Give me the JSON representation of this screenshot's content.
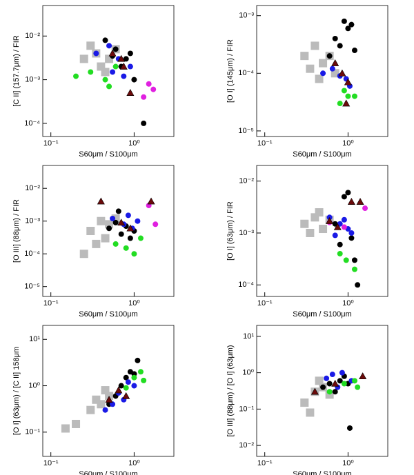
{
  "chart_data": [
    {
      "type": "scatter",
      "xlabel": "S60μm / S100μm",
      "ylabel": "[C II] (157.7μm) / FIR",
      "xlim": [
        0.08,
        3
      ],
      "xticks": [
        {
          "value": 0.1,
          "label": "10⁻¹"
        },
        {
          "value": 1,
          "label": "10⁰"
        }
      ],
      "ylim": [
        5e-05,
        0.05
      ],
      "yticks": [
        {
          "value": 0.01,
          "label": "10⁻²"
        },
        {
          "value": 0.001,
          "label": "10⁻³"
        },
        {
          "value": 0.0001,
          "label": "10⁻⁴"
        }
      ],
      "series": [
        {
          "color": "#bbbbbb",
          "marker": "square",
          "x": [
            0.25,
            0.35,
            0.4,
            0.5,
            0.6,
            0.3,
            0.45
          ],
          "y": [
            0.003,
            0.004,
            0.002,
            0.003,
            0.005,
            0.006,
            0.0015
          ]
        },
        {
          "color": "#000000",
          "marker": "circle",
          "x": [
            0.45,
            0.6,
            0.8,
            1.0,
            0.7,
            1.3,
            0.9,
            0.55
          ],
          "y": [
            0.008,
            0.005,
            0.003,
            0.001,
            0.002,
            0.0001,
            0.004,
            0.0035
          ]
        },
        {
          "color": "#1a1ae6",
          "marker": "circle",
          "x": [
            0.35,
            0.5,
            0.65,
            0.9,
            0.55,
            0.75
          ],
          "y": [
            0.004,
            0.006,
            0.003,
            0.002,
            0.0015,
            0.0012
          ]
        },
        {
          "color": "#22dd22",
          "marker": "circle",
          "x": [
            0.3,
            0.45,
            0.6,
            0.5,
            0.2
          ],
          "y": [
            0.0015,
            0.001,
            0.002,
            0.0007,
            0.0012
          ]
        },
        {
          "color": "#e020e0",
          "marker": "circle",
          "x": [
            1.5,
            1.7,
            1.3
          ],
          "y": [
            0.0008,
            0.0006,
            0.0004
          ]
        },
        {
          "color": "#6b0a0a",
          "marker": "triangle",
          "x": [
            0.55,
            0.75,
            0.9,
            0.7
          ],
          "y": [
            0.004,
            0.002,
            0.0005,
            0.003
          ]
        }
      ]
    },
    {
      "type": "scatter",
      "xlabel": "S60μm / S100μm",
      "ylabel": "[O I] (145μm) / FIR",
      "xlim": [
        0.08,
        3
      ],
      "xticks": [
        {
          "value": 0.1,
          "label": "10⁻¹"
        },
        {
          "value": 1,
          "label": "10⁰"
        }
      ],
      "ylim": [
        8e-06,
        0.0015
      ],
      "yticks": [
        {
          "value": 0.001,
          "label": "10⁻³"
        },
        {
          "value": 0.0001,
          "label": "10⁻⁴"
        },
        {
          "value": 1e-05,
          "label": "10⁻⁵"
        }
      ],
      "series": [
        {
          "color": "#bbbbbb",
          "marker": "square",
          "x": [
            0.3,
            0.4,
            0.5,
            0.6,
            0.7,
            0.45,
            0.35
          ],
          "y": [
            0.0002,
            0.0003,
            0.00015,
            0.0002,
            0.0001,
            8e-05,
            0.00012
          ]
        },
        {
          "color": "#000000",
          "marker": "circle",
          "x": [
            0.9,
            1.0,
            1.1,
            0.7,
            0.8,
            0.6,
            1.2
          ],
          "y": [
            0.0008,
            0.0006,
            0.0007,
            0.0004,
            0.0003,
            0.0002,
            0.00025
          ]
        },
        {
          "color": "#1a1ae6",
          "marker": "circle",
          "x": [
            0.5,
            0.65,
            0.8,
            0.95,
            1.05
          ],
          "y": [
            0.0001,
            0.00012,
            9e-05,
            8e-05,
            6e-05
          ]
        },
        {
          "color": "#22dd22",
          "marker": "circle",
          "x": [
            0.8,
            1.0,
            1.2,
            0.9
          ],
          "y": [
            3e-05,
            4e-05,
            4e-05,
            5e-05
          ]
        },
        {
          "color": "#6b0a0a",
          "marker": "triangle",
          "x": [
            0.7,
            0.85,
            0.95,
            1.0
          ],
          "y": [
            0.00015,
            0.0001,
            3e-05,
            7e-05
          ]
        }
      ]
    },
    {
      "type": "scatter",
      "xlabel": "S60μm / S100μm",
      "ylabel": "[O III] (88μm) / FIR",
      "xlim": [
        0.08,
        3
      ],
      "xticks": [
        {
          "value": 0.1,
          "label": "10⁻¹"
        },
        {
          "value": 1,
          "label": "10⁰"
        }
      ],
      "ylim": [
        5e-06,
        0.05
      ],
      "yticks": [
        {
          "value": 0.01,
          "label": "10⁻²"
        },
        {
          "value": 0.001,
          "label": "10⁻³"
        },
        {
          "value": 0.0001,
          "label": "10⁻⁴"
        },
        {
          "value": 1e-05,
          "label": "10⁻⁵"
        }
      ],
      "series": [
        {
          "color": "#bbbbbb",
          "marker": "square",
          "x": [
            0.3,
            0.4,
            0.5,
            0.6,
            0.45,
            0.35,
            0.25
          ],
          "y": [
            0.0005,
            0.001,
            0.0008,
            0.0012,
            0.0003,
            0.0002,
            0.0001
          ]
        },
        {
          "color": "#000000",
          "marker": "circle",
          "x": [
            0.5,
            0.6,
            0.7,
            0.8,
            0.9,
            1.0,
            0.65
          ],
          "y": [
            0.0006,
            0.0009,
            0.0004,
            0.0007,
            0.0003,
            0.0005,
            0.002
          ]
        },
        {
          "color": "#1a1ae6",
          "marker": "circle",
          "x": [
            0.55,
            0.75,
            0.85,
            1.1,
            0.95
          ],
          "y": [
            0.0012,
            0.0008,
            0.0015,
            0.001,
            0.0006
          ]
        },
        {
          "color": "#22dd22",
          "marker": "circle",
          "x": [
            0.6,
            0.8,
            1.0,
            1.2
          ],
          "y": [
            0.0002,
            0.00015,
            0.0001,
            0.0003
          ]
        },
        {
          "color": "#e020e0",
          "marker": "circle",
          "x": [
            1.5,
            1.8
          ],
          "y": [
            0.003,
            0.0008
          ]
        },
        {
          "color": "#6b0a0a",
          "marker": "triangle",
          "x": [
            0.4,
            0.7,
            0.9,
            1.6
          ],
          "y": [
            0.004,
            0.0009,
            0.0006,
            0.004
          ]
        }
      ]
    },
    {
      "type": "scatter",
      "xlabel": "S60μm / S100μm",
      "ylabel": "[O I] (63μm) / FIR",
      "xlim": [
        0.08,
        3
      ],
      "xticks": [
        {
          "value": 0.1,
          "label": "10⁻¹"
        },
        {
          "value": 1,
          "label": "10⁰"
        }
      ],
      "ylim": [
        6e-05,
        0.02
      ],
      "yticks": [
        {
          "value": 0.01,
          "label": "10⁻²"
        },
        {
          "value": 0.001,
          "label": "10⁻³"
        },
        {
          "value": 0.0001,
          "label": "10⁻⁴"
        }
      ],
      "series": [
        {
          "color": "#bbbbbb",
          "marker": "square",
          "x": [
            0.3,
            0.4,
            0.5,
            0.6,
            0.35,
            0.45
          ],
          "y": [
            0.0015,
            0.002,
            0.0012,
            0.0018,
            0.001,
            0.0025
          ]
        },
        {
          "color": "#000000",
          "marker": "circle",
          "x": [
            0.9,
            1.0,
            1.1,
            0.8,
            0.7,
            1.2,
            1.3
          ],
          "y": [
            0.005,
            0.006,
            0.0008,
            0.0006,
            0.0015,
            0.0003,
            0.0001
          ]
        },
        {
          "color": "#1a1ae6",
          "marker": "circle",
          "x": [
            0.6,
            0.8,
            0.9,
            1.0,
            1.1,
            0.7
          ],
          "y": [
            0.002,
            0.0015,
            0.0018,
            0.0012,
            0.001,
            0.0009
          ]
        },
        {
          "color": "#22dd22",
          "marker": "circle",
          "x": [
            0.8,
            0.95,
            1.2
          ],
          "y": [
            0.0004,
            0.0003,
            0.0002
          ]
        },
        {
          "color": "#e020e0",
          "marker": "circle",
          "x": [
            0.6,
            0.9,
            1.6
          ],
          "y": [
            0.0016,
            0.0013,
            0.003
          ]
        },
        {
          "color": "#6b0a0a",
          "marker": "triangle",
          "x": [
            0.6,
            0.75,
            1.1,
            1.4
          ],
          "y": [
            0.0017,
            0.0013,
            0.004,
            0.004
          ]
        }
      ]
    },
    {
      "type": "scatter",
      "xlabel": "S60μm / S100μm",
      "ylabel": "[O I] (63μm) / [C II] 158μm",
      "xlim": [
        0.08,
        3
      ],
      "xticks": [
        {
          "value": 0.1,
          "label": "10⁻¹"
        },
        {
          "value": 1,
          "label": "10⁰"
        }
      ],
      "ylim": [
        0.03,
        20
      ],
      "yticks": [
        {
          "value": 10,
          "label": "10¹"
        },
        {
          "value": 1,
          "label": "10⁰"
        },
        {
          "value": 0.1,
          "label": "10⁻¹"
        }
      ],
      "series": [
        {
          "color": "#bbbbbb",
          "marker": "square",
          "x": [
            0.3,
            0.35,
            0.4,
            0.5,
            0.45,
            0.2,
            0.15
          ],
          "y": [
            0.3,
            0.5,
            0.4,
            0.6,
            0.8,
            0.15,
            0.12
          ]
        },
        {
          "color": "#000000",
          "marker": "circle",
          "x": [
            0.6,
            0.7,
            0.8,
            0.9,
            1.0,
            1.1,
            0.5
          ],
          "y": [
            0.6,
            1.0,
            1.5,
            2.0,
            1.8,
            3.5,
            0.4
          ]
        },
        {
          "color": "#1a1ae6",
          "marker": "circle",
          "x": [
            0.45,
            0.55,
            0.65,
            0.75,
            0.85,
            1.0
          ],
          "y": [
            0.3,
            0.4,
            0.7,
            0.5,
            1.2,
            1.0
          ]
        },
        {
          "color": "#22dd22",
          "marker": "circle",
          "x": [
            0.8,
            1.0,
            1.2,
            1.3
          ],
          "y": [
            0.9,
            1.5,
            2.0,
            1.3
          ]
        },
        {
          "color": "#6b0a0a",
          "marker": "triangle",
          "x": [
            0.5,
            0.65,
            0.8
          ],
          "y": [
            0.5,
            0.8,
            0.6
          ]
        }
      ]
    },
    {
      "type": "scatter",
      "xlabel": "S60μm / S100μm",
      "ylabel": "[O III] (88μm) / [O I] (63μm)",
      "xlim": [
        0.08,
        3
      ],
      "xticks": [
        {
          "value": 0.1,
          "label": "10⁻¹"
        },
        {
          "value": 1,
          "label": "10⁰"
        }
      ],
      "ylim": [
        0.005,
        20
      ],
      "yticks": [
        {
          "value": 10,
          "label": "10¹"
        },
        {
          "value": 1,
          "label": "10⁰"
        },
        {
          "value": 0.1,
          "label": "10⁻¹"
        },
        {
          "value": 0.01,
          "label": "10⁻²"
        }
      ],
      "series": [
        {
          "color": "#bbbbbb",
          "marker": "square",
          "x": [
            0.3,
            0.4,
            0.5,
            0.35,
            0.45,
            0.6
          ],
          "y": [
            0.15,
            0.3,
            0.4,
            0.08,
            0.6,
            0.25
          ]
        },
        {
          "color": "#000000",
          "marker": "circle",
          "x": [
            0.5,
            0.6,
            0.7,
            0.8,
            0.9,
            1.0,
            1.05
          ],
          "y": [
            0.4,
            0.5,
            0.3,
            0.6,
            0.8,
            0.5,
            0.03
          ]
        },
        {
          "color": "#1a1ae6",
          "marker": "circle",
          "x": [
            0.55,
            0.65,
            0.75,
            0.85,
            1.1
          ],
          "y": [
            0.7,
            0.9,
            0.4,
            1.0,
            0.6
          ]
        },
        {
          "color": "#22dd22",
          "marker": "circle",
          "x": [
            0.6,
            0.9,
            1.2,
            1.3
          ],
          "y": [
            0.3,
            0.5,
            0.6,
            0.4
          ]
        },
        {
          "color": "#6b0a0a",
          "marker": "triangle",
          "x": [
            0.4,
            0.7,
            1.5
          ],
          "y": [
            0.3,
            0.5,
            0.8
          ]
        }
      ]
    }
  ]
}
